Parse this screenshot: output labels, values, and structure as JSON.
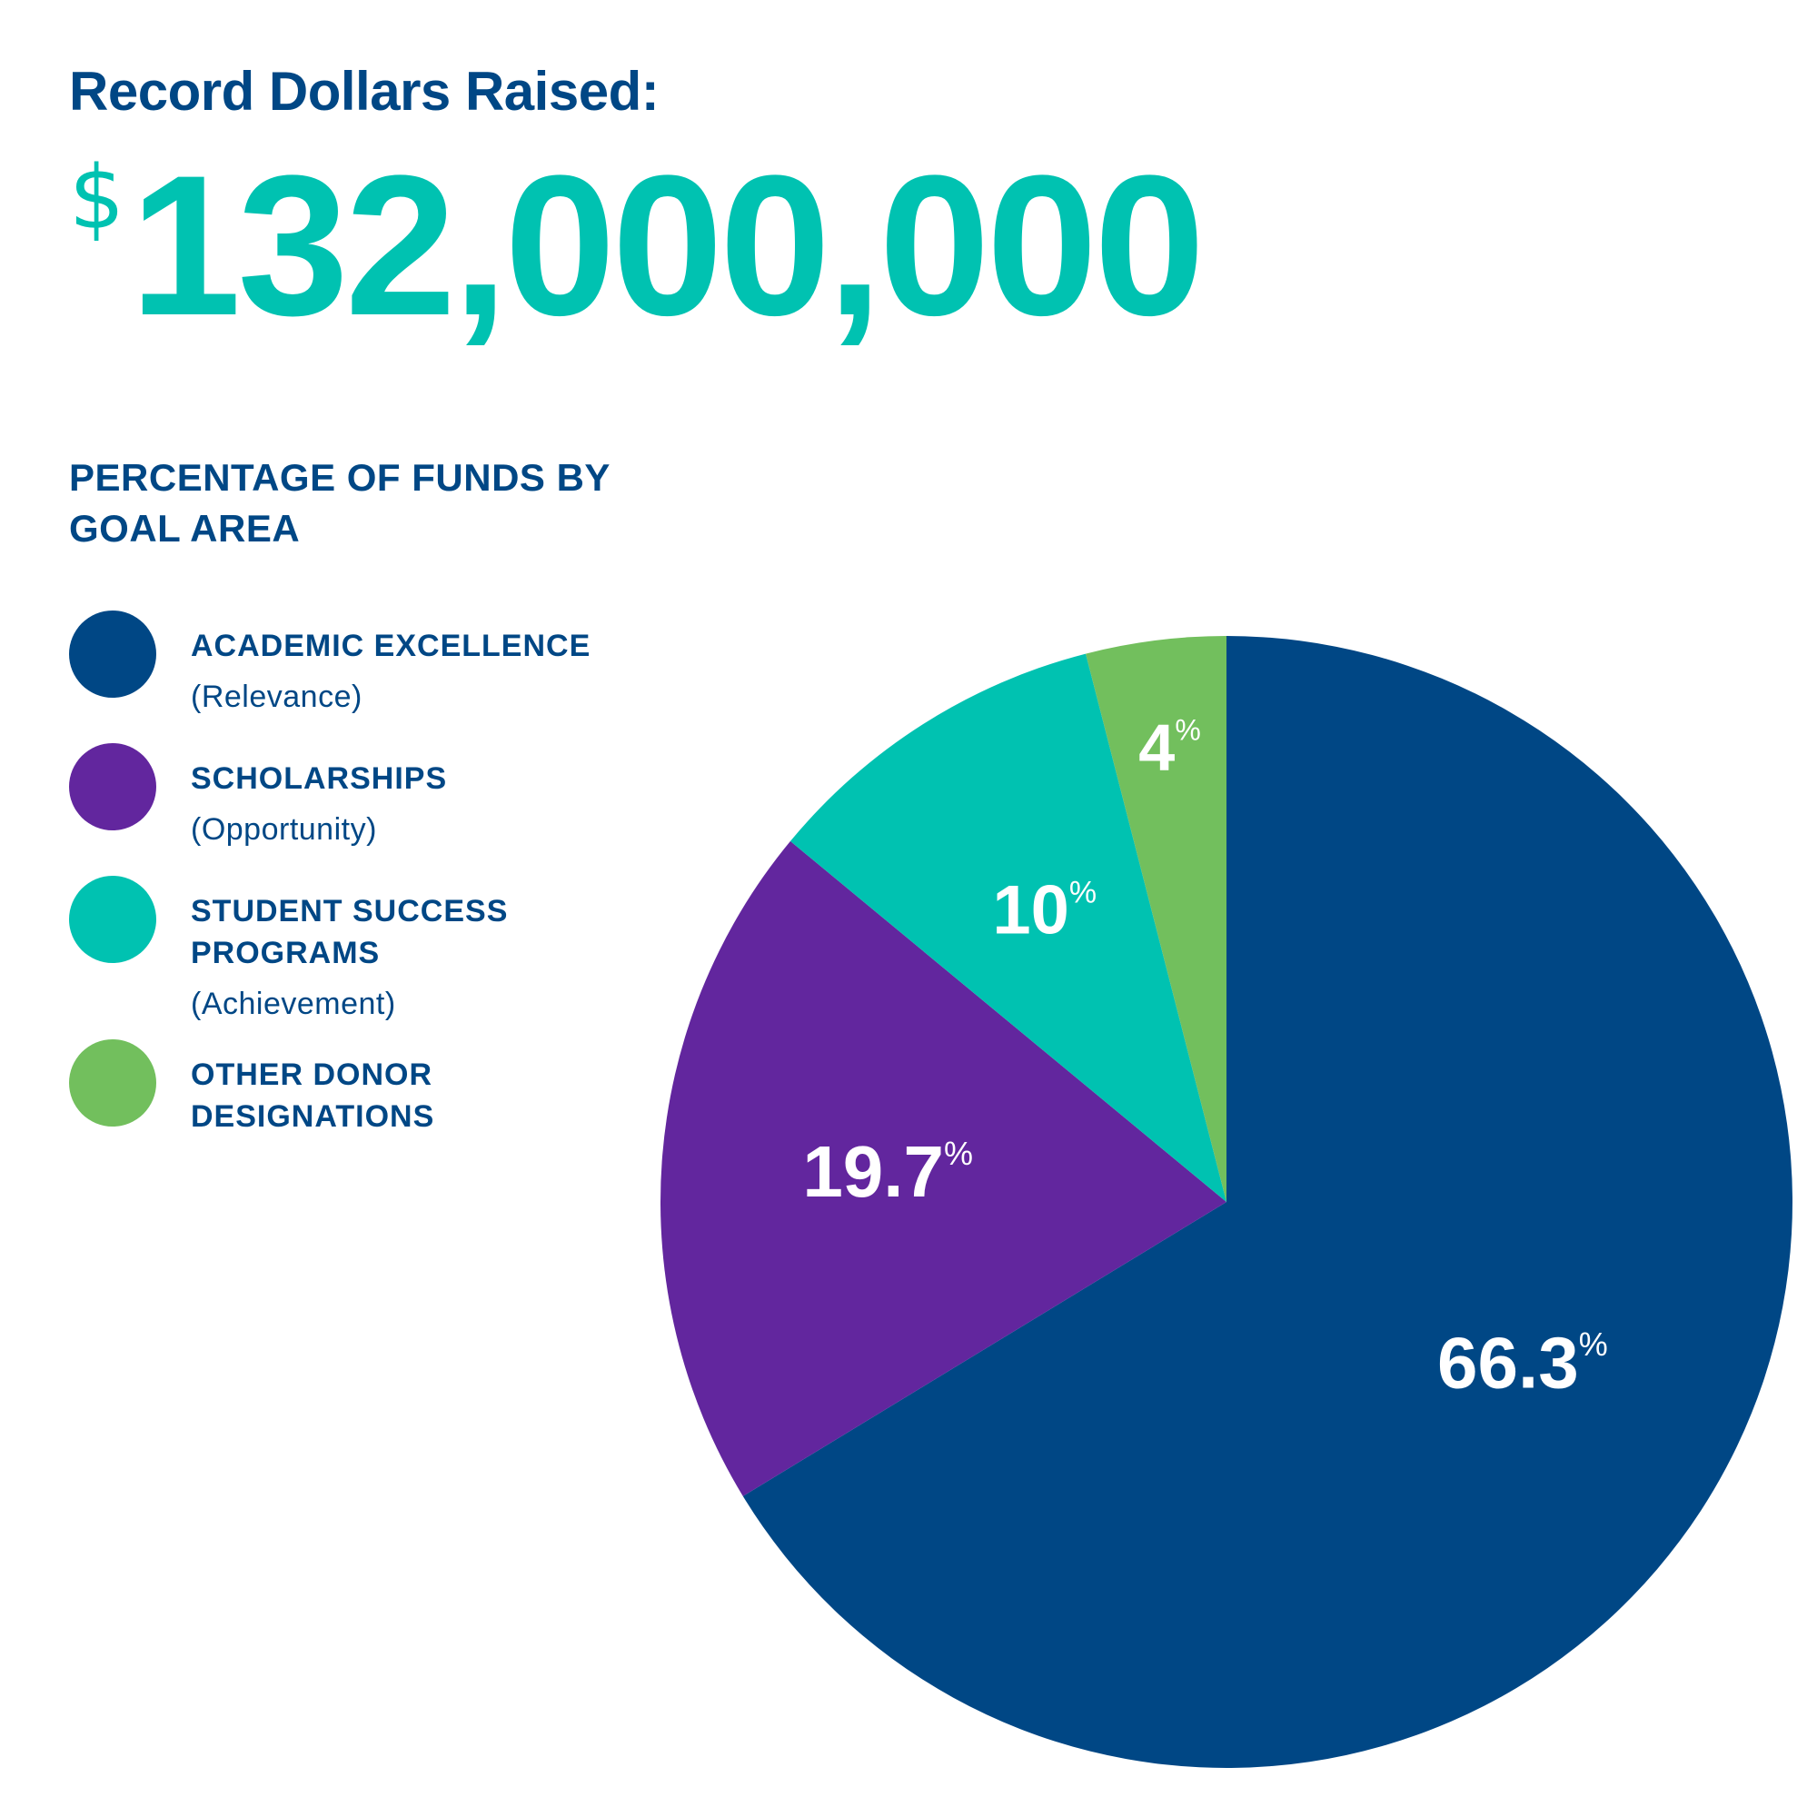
{
  "headline": "Record Dollars Raised:",
  "amount": {
    "currency": "$",
    "value": "132,000,000"
  },
  "subtitle": "PERCENTAGE OF FUNDS BY GOAL AREA",
  "legend": [
    {
      "label": "ACADEMIC EXCELLENCE",
      "sub": "(Relevance)",
      "color": "#004785"
    },
    {
      "label": "SCHOLARSHIPS",
      "sub": "(Opportunity)",
      "color": "#62269e"
    },
    {
      "label": "STUDENT SUCCESS PROGRAMS",
      "sub": "(Achievement)",
      "color": "#00c2b1"
    },
    {
      "label": "OTHER DONOR DESIGNATIONS",
      "sub": "",
      "color": "#72bf5d"
    }
  ],
  "chart_data": {
    "type": "pie",
    "title": "PERCENTAGE OF FUNDS BY GOAL AREA",
    "categories": [
      "ACADEMIC EXCELLENCE",
      "SCHOLARSHIPS",
      "STUDENT SUCCESS PROGRAMS",
      "OTHER DONOR DESIGNATIONS"
    ],
    "values": [
      66.3,
      19.7,
      10,
      4
    ],
    "labels": [
      "66.3",
      "19.7",
      "10",
      "4"
    ],
    "unit": "%",
    "colors": [
      "#004785",
      "#62269e",
      "#00c2b1",
      "#72bf5d"
    ],
    "start": "12 o'clock",
    "direction": "clockwise",
    "legend": "left"
  }
}
